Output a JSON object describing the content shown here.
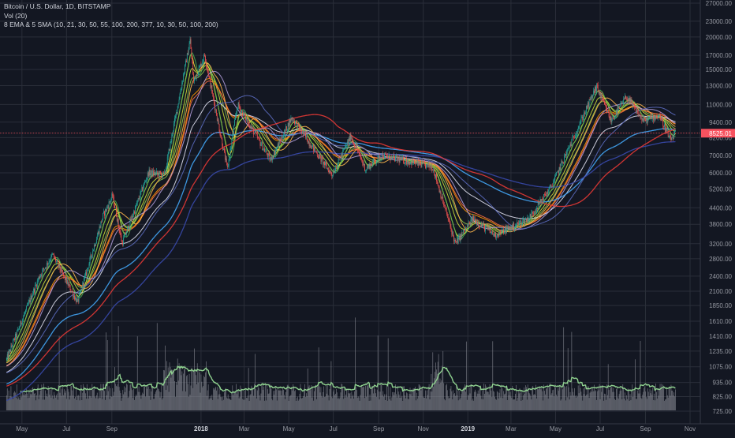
{
  "legend": {
    "symbol": "Bitcoin / U.S. Dollar, 1D, BITSTAMP",
    "volume": "Vol (20)",
    "indicators": "8 EMA & 5 SMA (10, 21, 30, 50, 55, 100, 200, 377, 10, 30, 50, 100, 200)"
  },
  "colors": {
    "background": "#131722",
    "grid": "#2a2e39",
    "price_line": "#f7525f",
    "price_label_bg": "#f7525f",
    "volume_bar": "#8a8d96",
    "volume_ma": "#8fd18f"
  },
  "chart_data": {
    "type": "line",
    "scale": "log",
    "xlabel": "",
    "ylabel": "",
    "x_ticks": [
      "May",
      "Jul",
      "Sep",
      "2018",
      "Mar",
      "May",
      "Jul",
      "Sep",
      "Nov",
      "2019",
      "Mar",
      "May",
      "Jul",
      "Sep",
      "Nov"
    ],
    "y_ticks": [
      725.0,
      825.0,
      935.0,
      1075.0,
      1235.0,
      1410.0,
      1610.0,
      1850.0,
      2100.0,
      2400.0,
      2800.0,
      3200.0,
      3800.0,
      4400.0,
      5200.0,
      6000.0,
      7000.0,
      8200.0,
      9400.0,
      11000.0,
      13000.0,
      15000.0,
      17000.0,
      20000.0,
      23000.0,
      27000.0
    ],
    "y_tick_labels": [
      "725.00",
      "825.00",
      "935.00",
      "1075.00",
      "1235.00",
      "1410.00",
      "1610.00",
      "1850.00",
      "2100.00",
      "2400.00",
      "2800.00",
      "3200.00",
      "3800.00",
      "4400.00",
      "5200.00",
      "6000.00",
      "7000.00",
      "8200.00",
      "9400.00",
      "11000.00",
      "13000.00",
      "15000.00",
      "17000.00",
      "20000.00",
      "23000.00",
      "27000.00"
    ],
    "ylim": [
      660,
      27000
    ],
    "last_price": 8525.01,
    "last_price_label": "8525.01",
    "price_keypoints": [
      [
        "2017-04-10",
        1150
      ],
      [
        "2017-05-25",
        2400
      ],
      [
        "2017-06-12",
        2900
      ],
      [
        "2017-07-16",
        1900
      ],
      [
        "2017-08-20",
        4100
      ],
      [
        "2017-09-02",
        4900
      ],
      [
        "2017-09-15",
        3200
      ],
      [
        "2017-10-21",
        6000
      ],
      [
        "2017-11-12",
        5900
      ],
      [
        "2017-12-17",
        19400
      ],
      [
        "2017-12-22",
        13500
      ],
      [
        "2018-01-06",
        17000
      ],
      [
        "2018-02-06",
        6200
      ],
      [
        "2018-02-20",
        11000
      ],
      [
        "2018-04-06",
        6700
      ],
      [
        "2018-05-05",
        9800
      ],
      [
        "2018-06-29",
        5900
      ],
      [
        "2018-07-25",
        8300
      ],
      [
        "2018-08-14",
        6200
      ],
      [
        "2018-09-05",
        7000
      ],
      [
        "2018-11-14",
        6300
      ],
      [
        "2018-12-15",
        3200
      ],
      [
        "2019-01-08",
        4000
      ],
      [
        "2019-02-07",
        3450
      ],
      [
        "2019-03-25",
        4000
      ],
      [
        "2019-04-25",
        5300
      ],
      [
        "2019-06-26",
        12900
      ],
      [
        "2019-07-16",
        9500
      ],
      [
        "2019-08-06",
        11800
      ],
      [
        "2019-08-29",
        9500
      ],
      [
        "2019-09-20",
        10000
      ],
      [
        "2019-10-05",
        8000
      ],
      [
        "2019-10-12",
        8525
      ]
    ],
    "series": [
      {
        "kind": "ema",
        "period": 10,
        "color": "#ffeb3b"
      },
      {
        "kind": "ema",
        "period": 21,
        "color": "#cddc39"
      },
      {
        "kind": "ema",
        "period": 30,
        "color": "#8bc34a"
      },
      {
        "kind": "ema",
        "period": 50,
        "color": "#ff9800"
      },
      {
        "kind": "ema",
        "period": 55,
        "color": "#ff7043"
      },
      {
        "kind": "ema",
        "period": 100,
        "color": "#e0e0f0"
      },
      {
        "kind": "ema",
        "period": 200,
        "color": "#42a5f5"
      },
      {
        "kind": "ema",
        "period": 377,
        "color": "#3949ab"
      },
      {
        "kind": "sma",
        "period": 10,
        "color": "#4caf50"
      },
      {
        "kind": "sma",
        "period": 30,
        "color": "#ffb74d"
      },
      {
        "kind": "sma",
        "period": 50,
        "color": "#b39ddb"
      },
      {
        "kind": "sma",
        "period": 100,
        "color": "#5c6bc0"
      },
      {
        "kind": "sma",
        "period": 200,
        "color": "#e53935"
      }
    ],
    "volume": {
      "ma_period": 20
    }
  }
}
